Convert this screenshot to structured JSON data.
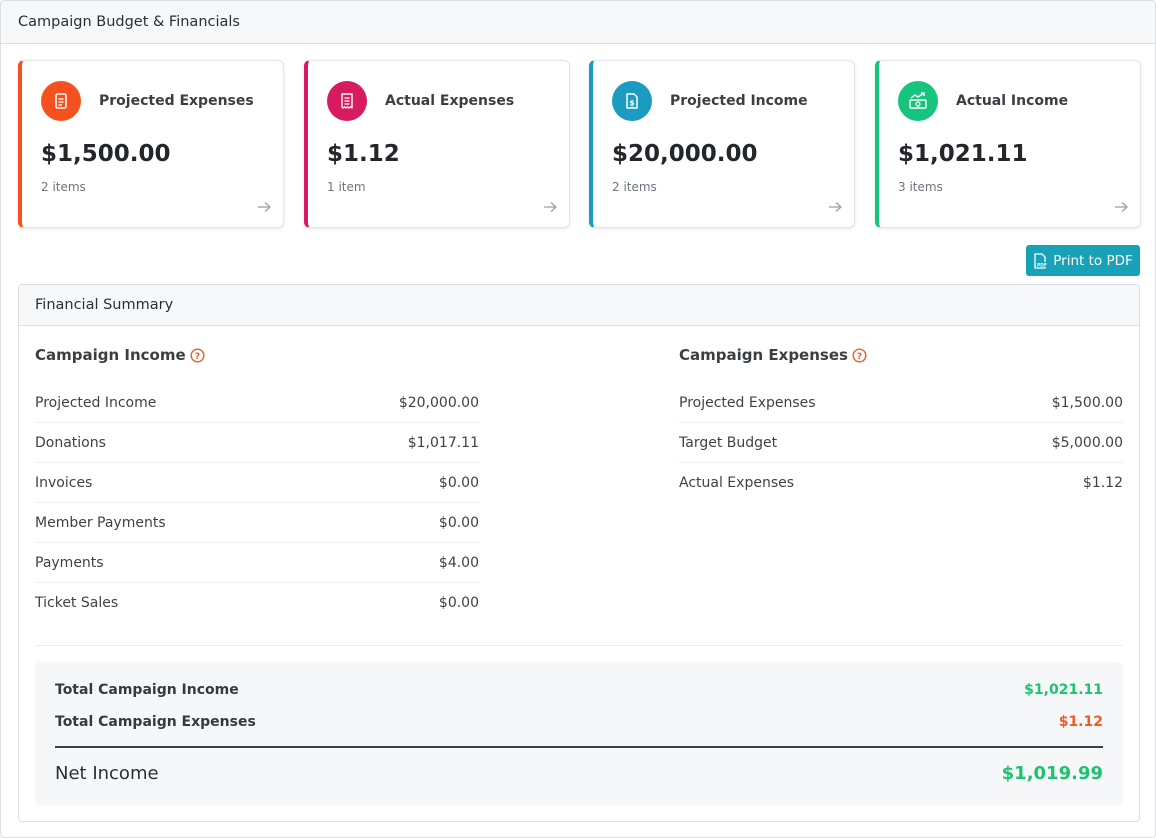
{
  "page": {
    "title": "Campaign Budget & Financials"
  },
  "cards": [
    {
      "title": "Projected Expenses",
      "amount": "$1,500.00",
      "count": "2 items",
      "color": "#f4511e",
      "icon": "document-icon"
    },
    {
      "title": "Actual Expenses",
      "amount": "$1.12",
      "count": "1 item",
      "color": "#d81b60",
      "icon": "receipt-icon"
    },
    {
      "title": "Projected Income",
      "amount": "$20,000.00",
      "count": "2 items",
      "color": "#1a9bbf",
      "icon": "dollar-file-icon"
    },
    {
      "title": "Actual Income",
      "amount": "$1,021.11",
      "count": "3 items",
      "color": "#16c47d",
      "icon": "money-trend-icon"
    }
  ],
  "actions": {
    "print_label": "Print to PDF"
  },
  "summary": {
    "title": "Financial Summary",
    "income": {
      "title": "Campaign Income",
      "rows": [
        {
          "label": "Projected Income",
          "value": "$20,000.00"
        },
        {
          "label": "Donations",
          "value": "$1,017.11"
        },
        {
          "label": "Invoices",
          "value": "$0.00"
        },
        {
          "label": "Member Payments",
          "value": "$0.00"
        },
        {
          "label": "Payments",
          "value": "$4.00"
        },
        {
          "label": "Ticket Sales",
          "value": "$0.00"
        }
      ]
    },
    "expenses": {
      "title": "Campaign Expenses",
      "rows": [
        {
          "label": "Projected Expenses",
          "value": "$1,500.00"
        },
        {
          "label": "Target Budget",
          "value": "$5,000.00"
        },
        {
          "label": "Actual Expenses",
          "value": "$1.12"
        }
      ]
    },
    "totals": {
      "income_label": "Total Campaign Income",
      "income_value": "$1,021.11",
      "expenses_label": "Total Campaign Expenses",
      "expenses_value": "$1.12",
      "net_label": "Net Income",
      "net_value": "$1,019.99"
    }
  },
  "colors": {
    "positive": "#1ec26f",
    "negative": "#f05a24",
    "help_icon": "#f05a24",
    "print_button": "#17a2b8"
  }
}
